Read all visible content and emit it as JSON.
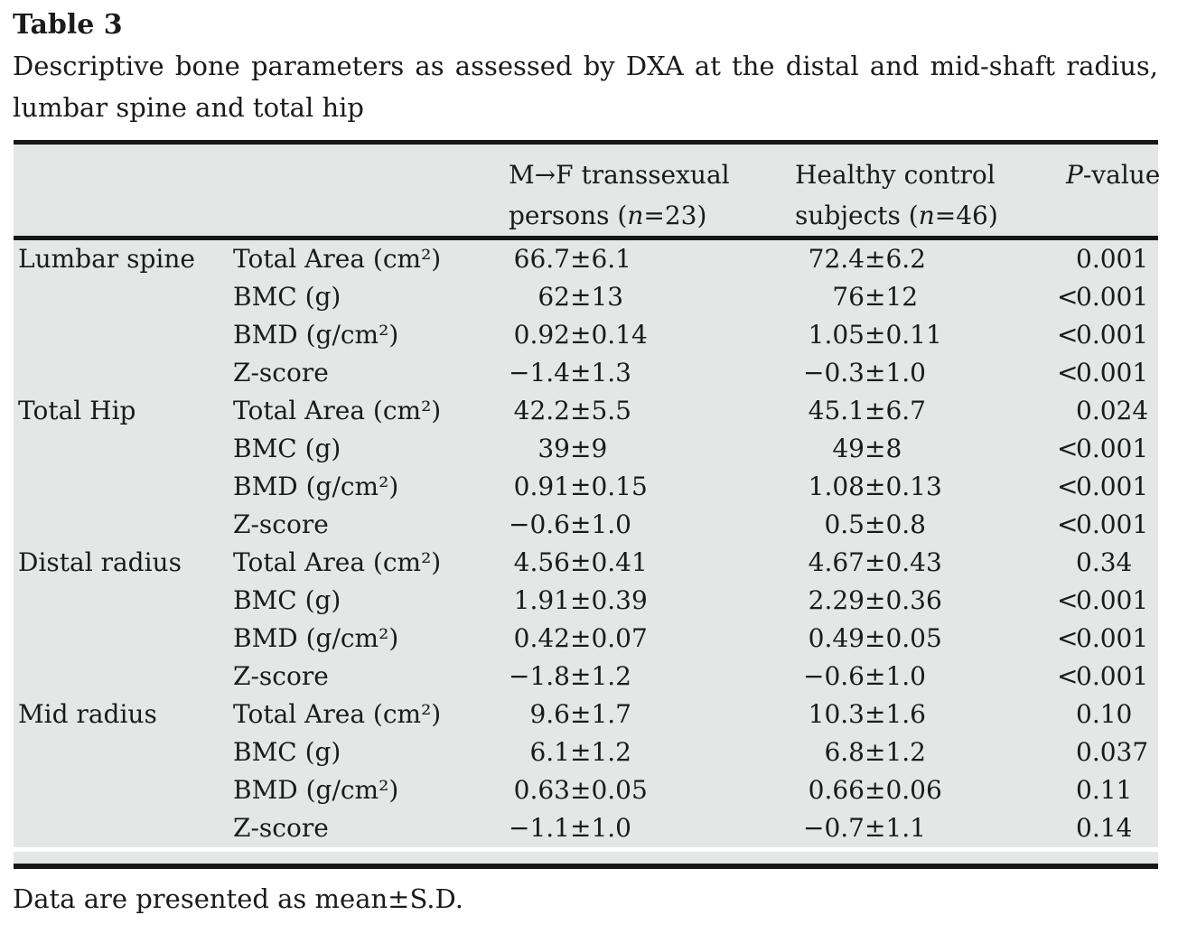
{
  "title": "Table 3",
  "caption_line1": "Descriptive bone parameters as assessed by DXA at the distal and mid-shaft radius,",
  "caption_line2": "lumbar spine and total hip",
  "header": {
    "mf_line1": "M→F transsexual",
    "mf_line2_html": "persons (<i>n</i>=23)",
    "ctrl_line1": "Healthy control",
    "ctrl_line2_html": "subjects (<i>n</i>=46)",
    "p_html": "<i>P</i>-value"
  },
  "symbols": {
    "plus_minus": "±"
  },
  "colors": {
    "table_bg": "#e5e6e6",
    "rule": "#161616",
    "text": "#1b1b1b",
    "page_bg": "#ffffff"
  },
  "footnote": "Data are presented as mean±S.D.",
  "groups": [
    {
      "name": "Lumbar spine",
      "rows": [
        {
          "param": "Total Area (cm²)",
          "mf_mean": "66.7",
          "mf_sd": "6.1",
          "ctrl_mean": "72.4",
          "ctrl_sd": "6.2",
          "p_rel": "",
          "p": "0.001"
        },
        {
          "param": "BMC (g)",
          "mf_mean": "62",
          "mf_sd": "13",
          "ctrl_mean": "76",
          "ctrl_sd": "12",
          "p_rel": "<",
          "p": "0.001"
        },
        {
          "param": "BMD (g/cm²)",
          "mf_mean": "0.92",
          "mf_sd": "0.14",
          "ctrl_mean": "1.05",
          "ctrl_sd": "0.11",
          "p_rel": "<",
          "p": "0.001"
        },
        {
          "param": "Z-score",
          "mf_mean": "−1.4",
          "mf_sd": "1.3",
          "ctrl_mean": "−0.3",
          "ctrl_sd": "1.0",
          "p_rel": "<",
          "p": "0.001"
        }
      ]
    },
    {
      "name": "Total Hip",
      "rows": [
        {
          "param": "Total Area (cm²)",
          "mf_mean": "42.2",
          "mf_sd": "5.5",
          "ctrl_mean": "45.1",
          "ctrl_sd": "6.7",
          "p_rel": "",
          "p": "0.024"
        },
        {
          "param": "BMC (g)",
          "mf_mean": "39",
          "mf_sd": "9",
          "ctrl_mean": "49",
          "ctrl_sd": "8",
          "p_rel": "<",
          "p": "0.001"
        },
        {
          "param": "BMD (g/cm²)",
          "mf_mean": "0.91",
          "mf_sd": "0.15",
          "ctrl_mean": "1.08",
          "ctrl_sd": "0.13",
          "p_rel": "<",
          "p": "0.001"
        },
        {
          "param": "Z-score",
          "mf_mean": "−0.6",
          "mf_sd": "1.0",
          "ctrl_mean": "0.5",
          "ctrl_sd": "0.8",
          "p_rel": "<",
          "p": "0.001"
        }
      ]
    },
    {
      "name": "Distal radius",
      "rows": [
        {
          "param": "Total Area (cm²)",
          "mf_mean": "4.56",
          "mf_sd": "0.41",
          "ctrl_mean": "4.67",
          "ctrl_sd": "0.43",
          "p_rel": "",
          "p": "0.34"
        },
        {
          "param": "BMC (g)",
          "mf_mean": "1.91",
          "mf_sd": "0.39",
          "ctrl_mean": "2.29",
          "ctrl_sd": "0.36",
          "p_rel": "<",
          "p": "0.001"
        },
        {
          "param": "BMD (g/cm²)",
          "mf_mean": "0.42",
          "mf_sd": "0.07",
          "ctrl_mean": "0.49",
          "ctrl_sd": "0.05",
          "p_rel": "<",
          "p": "0.001"
        },
        {
          "param": "Z-score",
          "mf_mean": "−1.8",
          "mf_sd": "1.2",
          "ctrl_mean": "−0.6",
          "ctrl_sd": "1.0",
          "p_rel": "<",
          "p": "0.001"
        }
      ]
    },
    {
      "name": "Mid radius",
      "rows": [
        {
          "param": "Total Area (cm²)",
          "mf_mean": "9.6",
          "mf_sd": "1.7",
          "ctrl_mean": "10.3",
          "ctrl_sd": "1.6",
          "p_rel": "",
          "p": "0.10"
        },
        {
          "param": "BMC (g)",
          "mf_mean": "6.1",
          "mf_sd": "1.2",
          "ctrl_mean": "6.8",
          "ctrl_sd": "1.2",
          "p_rel": "",
          "p": "0.037"
        },
        {
          "param": "BMD (g/cm²)",
          "mf_mean": "0.63",
          "mf_sd": "0.05",
          "ctrl_mean": "0.66",
          "ctrl_sd": "0.06",
          "p_rel": "",
          "p": "0.11"
        },
        {
          "param": "Z-score",
          "mf_mean": "−1.1",
          "mf_sd": "1.0",
          "ctrl_mean": "−0.7",
          "ctrl_sd": "1.1",
          "p_rel": "",
          "p": "0.14"
        }
      ]
    }
  ]
}
